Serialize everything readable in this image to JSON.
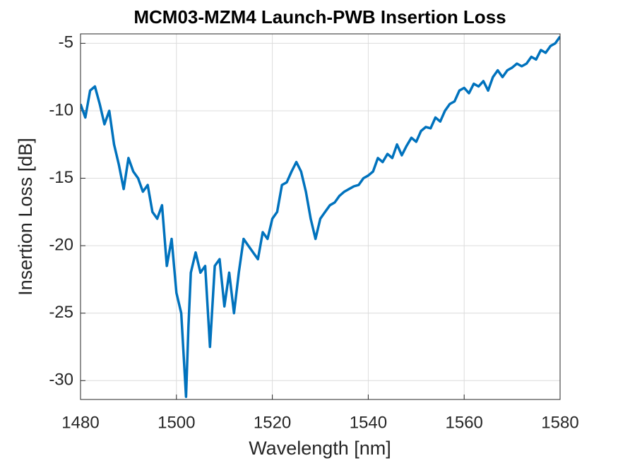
{
  "chart_data": {
    "type": "line",
    "title": "MCM03-MZM4 Launch-PWB Insertion Loss",
    "x_label": "Wavelength [nm]",
    "y_label": "Insertion Loss [dB]",
    "xlim": [
      1480,
      1580
    ],
    "xticks": [
      1480,
      1500,
      1520,
      1540,
      1560,
      1580
    ],
    "ylim": [
      -31.4,
      -4.3
    ],
    "yticks": [
      -30,
      -25,
      -20,
      -15,
      -10,
      -5
    ],
    "grid": true,
    "series": [
      {
        "color": "#0072bd",
        "x": [
          1480,
          1481,
          1482,
          1483,
          1484,
          1485,
          1486,
          1487,
          1488,
          1489,
          1490,
          1491,
          1492,
          1493,
          1494,
          1495,
          1496,
          1497,
          1498,
          1499,
          1500,
          1501,
          1502,
          1502.5,
          1503,
          1504,
          1505,
          1506,
          1507,
          1508,
          1509,
          1510,
          1511,
          1512,
          1513,
          1514,
          1515,
          1516,
          1517,
          1518,
          1519,
          1520,
          1521,
          1522,
          1523,
          1524,
          1525,
          1526,
          1527,
          1528,
          1529,
          1530,
          1531,
          1532,
          1533,
          1534,
          1535,
          1536,
          1537,
          1538,
          1539,
          1540,
          1541,
          1542,
          1543,
          1544,
          1545,
          1546,
          1547,
          1548,
          1549,
          1550,
          1551,
          1552,
          1553,
          1554,
          1555,
          1556,
          1557,
          1558,
          1559,
          1560,
          1561,
          1562,
          1563,
          1564,
          1565,
          1566,
          1567,
          1568,
          1569,
          1570,
          1571,
          1572,
          1573,
          1574,
          1575,
          1576,
          1577,
          1578,
          1579,
          1580
        ],
        "values": [
          -9.5,
          -10.5,
          -8.5,
          -8.2,
          -9.5,
          -11,
          -10,
          -12.5,
          -14,
          -15.8,
          -13.5,
          -14.5,
          -15,
          -16,
          -15.5,
          -17.5,
          -18,
          -17,
          -21.5,
          -19.5,
          -23.5,
          -25,
          -31.2,
          -26,
          -22,
          -20.5,
          -22,
          -21.5,
          -27.5,
          -21.5,
          -21,
          -24.5,
          -22,
          -25,
          -22,
          -19.5,
          -20,
          -20.5,
          -21,
          -19,
          -19.5,
          -18,
          -17.5,
          -15.5,
          -15.3,
          -14.5,
          -13.8,
          -14.5,
          -16,
          -18,
          -19.5,
          -18,
          -17.5,
          -17,
          -16.8,
          -16.3,
          -16,
          -15.8,
          -15.6,
          -15.5,
          -15,
          -14.8,
          -14.5,
          -13.5,
          -13.8,
          -13.2,
          -13.5,
          -12.5,
          -13.3,
          -12.6,
          -12,
          -12.3,
          -11.5,
          -11.2,
          -11.3,
          -10.5,
          -10.8,
          -10,
          -9.5,
          -9.3,
          -8.5,
          -8.3,
          -8.7,
          -8,
          -8.2,
          -7.8,
          -8.5,
          -7.5,
          -7,
          -7.5,
          -7,
          -6.8,
          -6.5,
          -6.7,
          -6.5,
          -6,
          -6.2,
          -5.5,
          -5.7,
          -5.2,
          -5,
          -4.5
        ]
      }
    ]
  }
}
